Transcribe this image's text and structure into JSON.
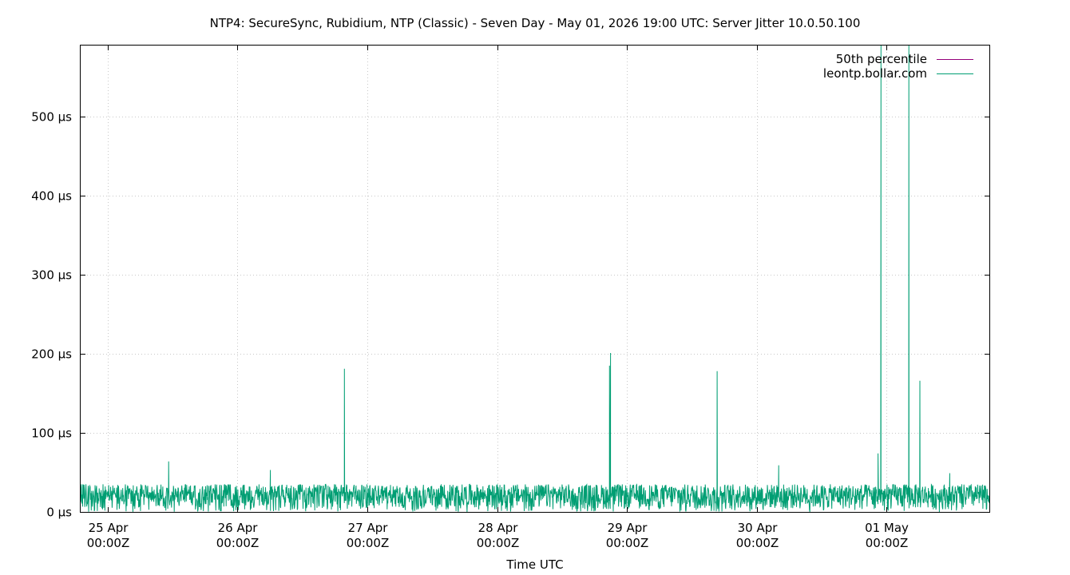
{
  "chart_data": {
    "type": "line",
    "title": "NTP4: SecureSync, Rubidium, NTP (Classic) - Seven Day - May 01, 2026 19:00 UTC: Server Jitter 10.0.50.100",
    "xlabel": "Time UTC",
    "ylabel": "",
    "x_range": [
      "2026-04-24T19:00Z",
      "2026-05-01T19:00Z"
    ],
    "ylim": [
      0,
      590
    ],
    "y_unit": "µs",
    "grid": true,
    "legend_position": "top-right",
    "x_ticks": [
      {
        "date": "2026-04-25T00:00Z",
        "line1": "25 Apr",
        "line2": "00:00Z"
      },
      {
        "date": "2026-04-26T00:00Z",
        "line1": "26 Apr",
        "line2": "00:00Z"
      },
      {
        "date": "2026-04-27T00:00Z",
        "line1": "27 Apr",
        "line2": "00:00Z"
      },
      {
        "date": "2026-04-28T00:00Z",
        "line1": "28 Apr",
        "line2": "00:00Z"
      },
      {
        "date": "2026-04-29T00:00Z",
        "line1": "29 Apr",
        "line2": "00:00Z"
      },
      {
        "date": "2026-04-30T00:00Z",
        "line1": "30 Apr",
        "line2": "00:00Z"
      },
      {
        "date": "2026-05-01T00:00Z",
        "line1": "01 May",
        "line2": "00:00Z"
      }
    ],
    "y_ticks": [
      {
        "value": 0,
        "label": "0 µs"
      },
      {
        "value": 100,
        "label": "100 µs"
      },
      {
        "value": 200,
        "label": "200 µs"
      },
      {
        "value": 300,
        "label": "300 µs"
      },
      {
        "value": 400,
        "label": "400 µs"
      },
      {
        "value": 500,
        "label": "500 µs"
      }
    ],
    "series": [
      {
        "name": "50th percentile",
        "color": "#94007a",
        "values": []
      },
      {
        "name": "leontp.bollar.com",
        "color": "#009e73",
        "baseline_range": [
          0,
          35
        ],
        "spikes": [
          {
            "t": "2026-04-25T11:16Z",
            "v": 64
          },
          {
            "t": "2026-04-26T06:05Z",
            "v": 53
          },
          {
            "t": "2026-04-26T19:46Z",
            "v": 181
          },
          {
            "t": "2026-04-28T20:46Z",
            "v": 185
          },
          {
            "t": "2026-04-28T20:58Z",
            "v": 201
          },
          {
            "t": "2026-04-29T16:40Z",
            "v": 178
          },
          {
            "t": "2026-04-30T04:03Z",
            "v": 59
          },
          {
            "t": "2026-04-30T22:25Z",
            "v": 74
          },
          {
            "t": "2026-04-30T22:58Z",
            "v": 590
          },
          {
            "t": "2026-05-01T04:07Z",
            "v": 590
          },
          {
            "t": "2026-05-01T06:09Z",
            "v": 166
          },
          {
            "t": "2026-05-01T11:41Z",
            "v": 49
          }
        ]
      }
    ]
  }
}
